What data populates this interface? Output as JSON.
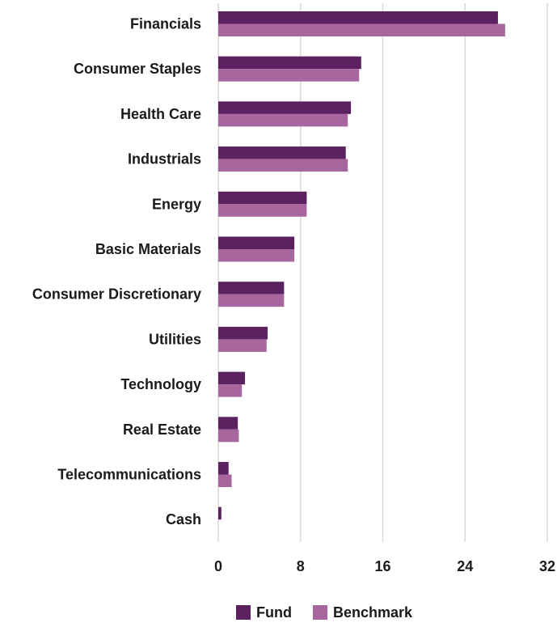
{
  "chart_data": {
    "type": "bar",
    "orientation": "horizontal",
    "title": "",
    "xlabel": "",
    "ylabel": "",
    "categories": [
      "Financials",
      "Consumer Staples",
      "Health Care",
      "Industrials",
      "Energy",
      "Basic Materials",
      "Consumer Discretionary",
      "Utilities",
      "Technology",
      "Real Estate",
      "Telecommunications",
      "Cash"
    ],
    "series": [
      {
        "name": "Fund",
        "color": "#5b2160",
        "values": [
          27.2,
          13.9,
          12.9,
          12.4,
          8.6,
          7.4,
          6.4,
          4.8,
          2.6,
          1.9,
          1.0,
          0.3
        ]
      },
      {
        "name": "Benchmark",
        "color": "#a8669f",
        "values": [
          27.9,
          13.7,
          12.6,
          12.6,
          8.6,
          7.4,
          6.4,
          4.7,
          2.3,
          2.0,
          1.3,
          0.0
        ]
      }
    ],
    "xlim": [
      0,
      32
    ],
    "xticks": [
      0,
      8,
      16,
      24,
      32
    ],
    "grid": true,
    "legend_position": "bottom-center"
  }
}
